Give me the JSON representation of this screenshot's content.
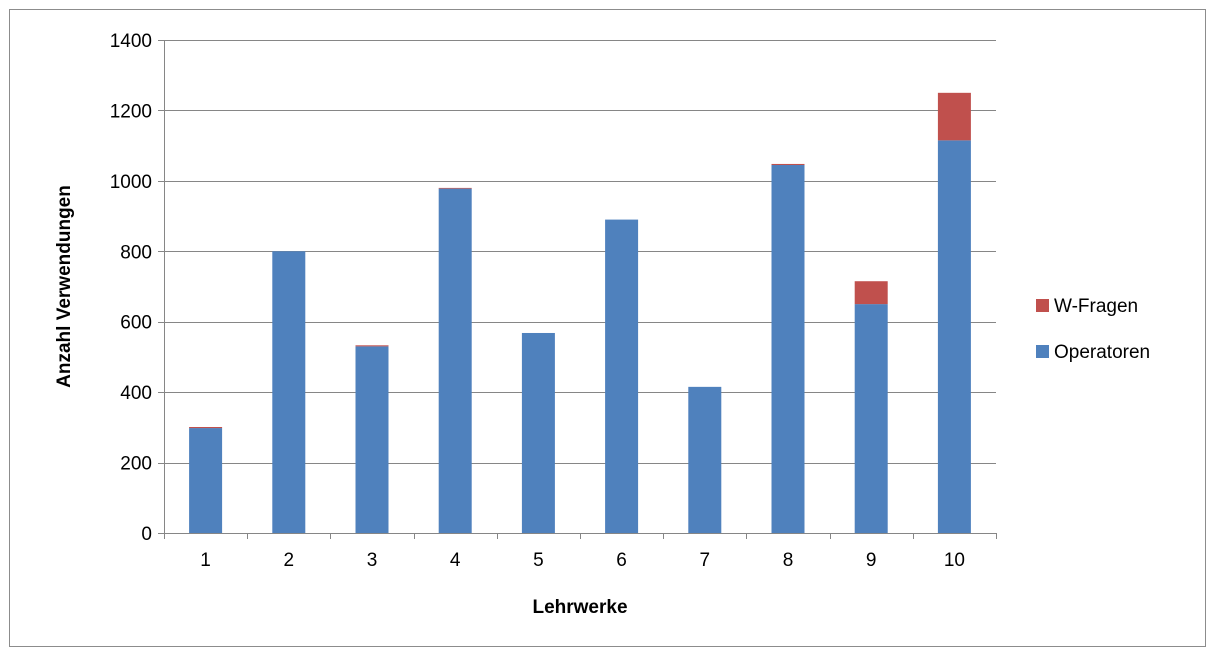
{
  "chart_data": {
    "type": "bar",
    "stacked": true,
    "categories": [
      "1",
      "2",
      "3",
      "4",
      "5",
      "6",
      "7",
      "8",
      "9",
      "10"
    ],
    "series": [
      {
        "name": "Operatoren",
        "color": "#4F81BD",
        "values": [
          298,
          800,
          530,
          978,
          568,
          890,
          415,
          1045,
          650,
          1115
        ]
      },
      {
        "name": "W-Fragen",
        "color": "#C0504D",
        "values": [
          3,
          0,
          3,
          2,
          0,
          0,
          0,
          3,
          65,
          135
        ]
      }
    ],
    "title": "",
    "xlabel": "Lehrwerke",
    "ylabel": "Anzahl Verwendungen",
    "ylim": [
      0,
      1400
    ],
    "yticks": [
      0,
      200,
      400,
      600,
      800,
      1000,
      1200,
      1400
    ],
    "grid": true,
    "legend_position": "right",
    "legend_order": [
      "W-Fragen",
      "Operatoren"
    ],
    "gridline_color": "#868686",
    "axis_color": "#868686"
  }
}
